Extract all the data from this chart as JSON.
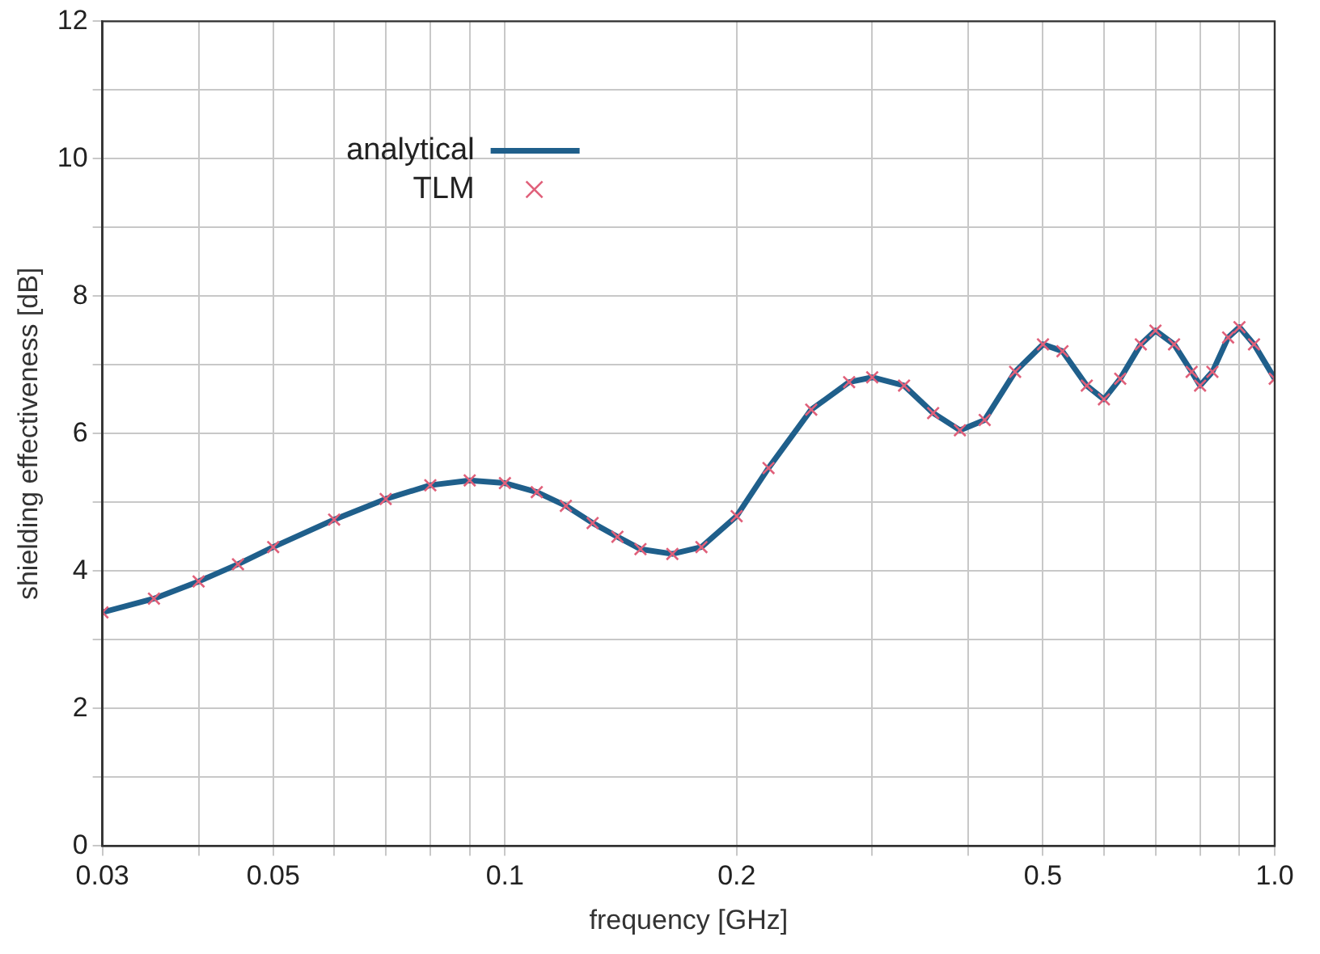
{
  "chart_data": {
    "type": "line",
    "xlabel": "frequency [GHz]",
    "ylabel": "shielding effectiveness [dB]",
    "log": "x",
    "x": [
      0.03,
      0.035,
      0.04,
      0.045,
      0.05,
      0.06,
      0.07,
      0.08,
      0.09,
      0.1,
      0.11,
      0.12,
      0.13,
      0.14,
      0.15,
      0.165,
      0.18,
      0.2,
      0.22,
      0.25,
      0.28,
      0.3,
      0.33,
      0.36,
      0.39,
      0.42,
      0.46,
      0.5,
      0.53,
      0.57,
      0.6,
      0.63,
      0.67,
      0.7,
      0.74,
      0.78,
      0.8,
      0.83,
      0.87,
      0.9,
      0.94,
      1.0
    ],
    "series": [
      {
        "name": "analytical",
        "color": "#1f5f8b",
        "marker": "none",
        "values": [
          3.4,
          3.6,
          3.85,
          4.1,
          4.35,
          4.75,
          5.05,
          5.25,
          5.32,
          5.28,
          5.15,
          4.95,
          4.7,
          4.5,
          4.32,
          4.25,
          4.35,
          4.8,
          5.5,
          6.35,
          6.75,
          6.82,
          6.7,
          6.3,
          6.05,
          6.2,
          6.9,
          7.3,
          7.2,
          6.7,
          6.5,
          6.8,
          7.3,
          7.5,
          7.3,
          6.9,
          6.7,
          6.9,
          7.4,
          7.55,
          7.3,
          6.8
        ]
      },
      {
        "name": "TLM",
        "type": "scatter",
        "color": "#e0607a",
        "marker": "cross",
        "values": [
          3.4,
          3.6,
          3.85,
          4.1,
          4.35,
          4.75,
          5.05,
          5.25,
          5.32,
          5.28,
          5.15,
          4.95,
          4.7,
          4.5,
          4.32,
          4.25,
          4.35,
          4.8,
          5.5,
          6.35,
          6.75,
          6.82,
          6.7,
          6.3,
          6.05,
          6.2,
          6.9,
          7.3,
          7.2,
          6.7,
          6.5,
          6.8,
          7.3,
          7.5,
          7.3,
          6.9,
          6.7,
          6.9,
          7.4,
          7.55,
          7.3,
          6.8
        ]
      }
    ],
    "xlim": [
      0.03,
      1.0
    ],
    "xticks": [
      0.03,
      {
        "value": 0.04,
        "label": null
      },
      0.05,
      {
        "value": 0.06,
        "label": null
      },
      {
        "value": 0.07,
        "label": null
      },
      {
        "value": 0.08,
        "label": null
      },
      {
        "value": 0.09,
        "label": null
      },
      0.1,
      0.2,
      {
        "value": 0.3,
        "label": null
      },
      {
        "value": 0.4,
        "label": null
      },
      0.5,
      {
        "value": 0.6,
        "label": null
      },
      {
        "value": 0.7,
        "label": null
      },
      {
        "value": 0.8,
        "label": null
      },
      {
        "value": 0.9,
        "label": null
      },
      {
        "value": 1,
        "label": "1.0"
      }
    ],
    "ylim": [
      0,
      12
    ],
    "yticks": [
      0,
      {
        "value": 1,
        "label": null
      },
      2,
      {
        "value": 3,
        "label": null
      },
      4,
      {
        "value": 5,
        "label": null
      },
      6,
      {
        "value": 7,
        "label": null
      },
      8,
      {
        "value": 9,
        "label": null
      },
      10,
      {
        "value": 11,
        "label": null
      },
      12
    ],
    "grid": true,
    "legend": "top left"
  }
}
